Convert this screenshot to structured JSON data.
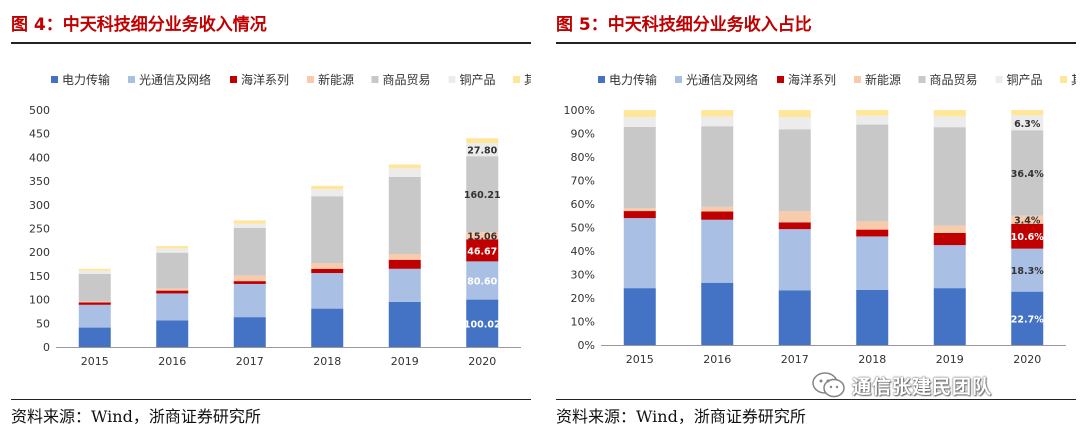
{
  "left": {
    "title": "图 4：中天科技细分业务收入情况",
    "source": "资料来源：Wind，浙商证券研究所"
  },
  "right": {
    "title": "图 5：中天科技细分业务收入占比",
    "source": "资料来源：Wind，浙商证券研究所"
  },
  "watermark": {
    "text": "通信张建民团队",
    "icon": "wechat-icon"
  },
  "colors": {
    "电力传输": "#4472c4",
    "光通信及网络": "#a9c0e4",
    "海洋系列": "#c00000",
    "新能源": "#f7cbac",
    "商品贸易": "#c8c8c8",
    "铜产品": "#ececec",
    "其他": "#ffe699"
  },
  "chart_data": [
    {
      "type": "bar",
      "stacked": true,
      "title": "图 4：中天科技细分业务收入情况",
      "categories": [
        "2015",
        "2016",
        "2017",
        "2018",
        "2019",
        "2020"
      ],
      "ylim": [
        0,
        500
      ],
      "yticks": [
        "0",
        "50",
        "100",
        "150",
        "200",
        "250",
        "300",
        "350",
        "400",
        "450",
        "500"
      ],
      "legend_position": "top",
      "series": [
        {
          "name": "电力传输",
          "values": [
            41,
            56,
            63,
            81,
            95,
            100.02
          ]
        },
        {
          "name": "光通信及网络",
          "values": [
            48,
            57,
            70,
            75,
            70,
            80.6
          ]
        },
        {
          "name": "海洋系列",
          "values": [
            5,
            6,
            6,
            9,
            19,
            46.67
          ]
        },
        {
          "name": "新能源",
          "values": [
            2,
            4,
            12,
            12,
            12,
            15.06
          ]
        },
        {
          "name": "商品贸易",
          "values": [
            58,
            76,
            100,
            141,
            163,
            160.21
          ]
        },
        {
          "name": "铜产品",
          "values": [
            7,
            9,
            9,
            15,
            18,
            27.8
          ]
        },
        {
          "name": "其他",
          "values": [
            4,
            5,
            7,
            7,
            8,
            10
          ]
        }
      ],
      "data_labels": [
        {
          "category": "2020",
          "series": "电力传输",
          "text": "100.02"
        },
        {
          "category": "2020",
          "series": "光通信及网络",
          "text": "80.60"
        },
        {
          "category": "2020",
          "series": "海洋系列",
          "text": "46.67"
        },
        {
          "category": "2020",
          "series": "新能源",
          "text": "15.06"
        },
        {
          "category": "2020",
          "series": "商品贸易",
          "text": "160.21"
        },
        {
          "category": "2020",
          "series": "铜产品",
          "text": "27.80"
        }
      ]
    },
    {
      "type": "bar",
      "stacked": true,
      "percent": true,
      "title": "图 5：中天科技细分业务收入占比",
      "categories": [
        "2015",
        "2016",
        "2017",
        "2018",
        "2019",
        "2020"
      ],
      "ylim": [
        0,
        100
      ],
      "yticks": [
        "0%",
        "10%",
        "20%",
        "30%",
        "40%",
        "50%",
        "60%",
        "70%",
        "80%",
        "90%",
        "100%"
      ],
      "legend_position": "top",
      "series": [
        {
          "name": "电力传输",
          "values": [
            24.2,
            26.5,
            23.3,
            23.5,
            24.2,
            22.7
          ]
        },
        {
          "name": "光通信及网络",
          "values": [
            29.8,
            26.8,
            26.0,
            22.7,
            18.3,
            18.3
          ]
        },
        {
          "name": "海洋系列",
          "values": [
            3.0,
            3.5,
            2.9,
            2.9,
            5.2,
            10.6
          ]
        },
        {
          "name": "新能源",
          "values": [
            1.2,
            2.0,
            4.7,
            3.5,
            3.1,
            3.4
          ]
        },
        {
          "name": "商品贸易",
          "values": [
            34.6,
            34.3,
            34.9,
            41.2,
            41.9,
            36.4
          ]
        },
        {
          "name": "铜产品",
          "values": [
            4.2,
            4.1,
            5.2,
            3.8,
            4.6,
            6.3
          ]
        },
        {
          "name": "其他",
          "values": [
            3.0,
            2.8,
            3.0,
            2.4,
            2.7,
            2.3
          ]
        }
      ],
      "data_labels": [
        {
          "category": "2020",
          "series": "电力传输",
          "text": "22.7%"
        },
        {
          "category": "2020",
          "series": "光通信及网络",
          "text": "18.3%"
        },
        {
          "category": "2020",
          "series": "海洋系列",
          "text": "10.6%"
        },
        {
          "category": "2020",
          "series": "新能源",
          "text": "3.4%"
        },
        {
          "category": "2020",
          "series": "商品贸易",
          "text": "36.4%"
        },
        {
          "category": "2020",
          "series": "铜产品",
          "text": "6.3%"
        }
      ]
    }
  ]
}
